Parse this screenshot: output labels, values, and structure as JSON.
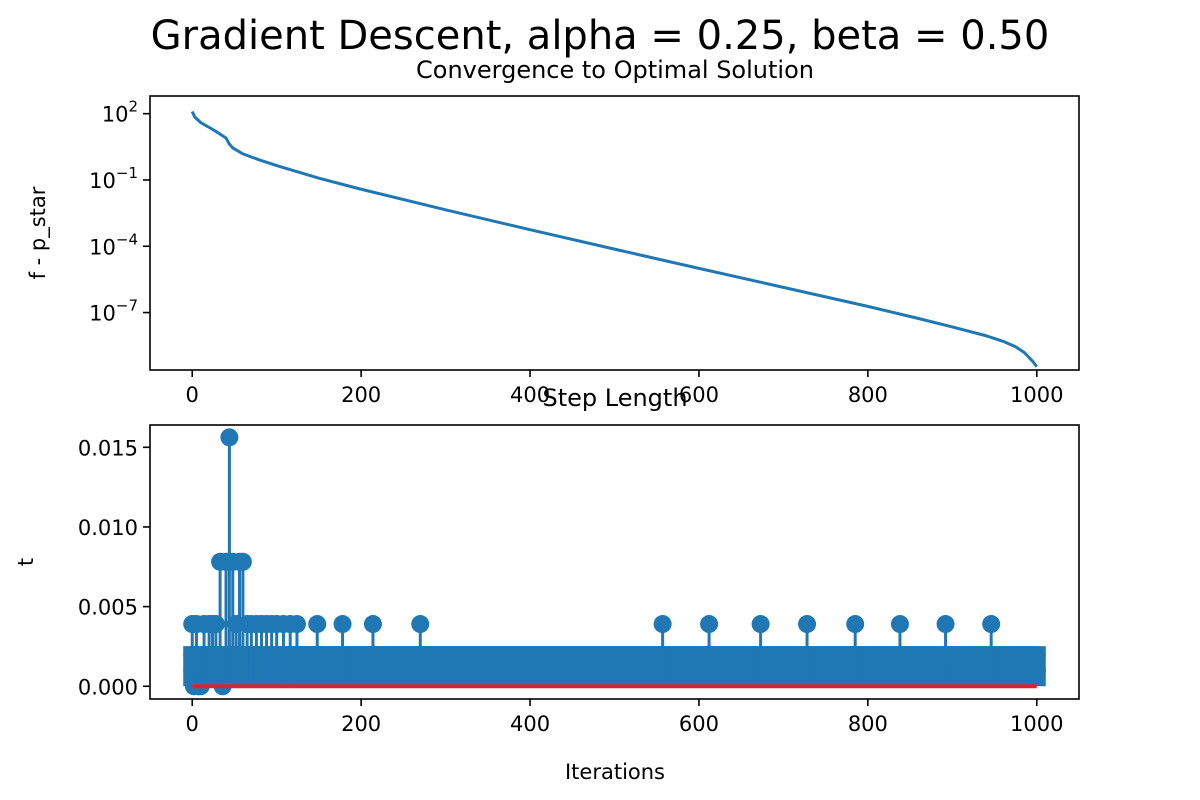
{
  "figure": {
    "suptitle": "Gradient Descent, alpha = 0.25, beta = 0.50"
  },
  "colors": {
    "series": "#1f77b4",
    "baseline": "#d62728",
    "axes": "#000000"
  },
  "chart_data": [
    {
      "type": "line",
      "title": "Convergence to Optimal Solution",
      "xlabel": "",
      "ylabel": "f - p_star",
      "xlim": [
        -50,
        1050
      ],
      "ylim_log10": [
        -9.6,
        2.8
      ],
      "yscale": "log",
      "grid": false,
      "x_ticks": [
        0,
        200,
        400,
        600,
        800,
        1000
      ],
      "y_ticks": [
        {
          "base": "10",
          "exp": "2",
          "value": 100
        },
        {
          "base": "10",
          "exp": "−1",
          "value": 0.1
        },
        {
          "base": "10",
          "exp": "−4",
          "value": 0.0001
        },
        {
          "base": "10",
          "exp": "−7",
          "value": 1e-07
        }
      ],
      "series": [
        {
          "x": [
            0,
            3,
            10,
            20,
            30,
            40,
            44,
            48,
            60,
            80,
            100,
            150,
            200,
            300,
            400,
            500,
            600,
            700,
            800,
            860,
            900,
            940,
            960,
            975,
            985,
            990,
            995,
            998,
            1000
          ],
          "y_log10": [
            2.1,
            1.85,
            1.6,
            1.38,
            1.15,
            0.9,
            0.62,
            0.45,
            0.18,
            -0.1,
            -0.35,
            -0.92,
            -1.42,
            -2.35,
            -3.25,
            -4.13,
            -5.0,
            -5.86,
            -6.72,
            -7.27,
            -7.65,
            -8.05,
            -8.3,
            -8.55,
            -8.8,
            -9.0,
            -9.2,
            -9.35,
            -9.45
          ]
        }
      ]
    },
    {
      "type": "stem",
      "title": "Step Length",
      "xlabel": "Iterations",
      "ylabel": "t",
      "xlim": [
        -50,
        1050
      ],
      "ylim": [
        -0.0008,
        0.0164
      ],
      "grid": false,
      "x_ticks": [
        0,
        200,
        400,
        600,
        800,
        1000
      ],
      "y_ticks": [
        "0.000",
        "0.005",
        "0.010",
        "0.015"
      ],
      "y_tick_values": [
        0,
        0.005,
        0.01,
        0.015
      ],
      "base_value": 0.001953125,
      "band_values": [
        0.001953125,
        0.0009765625
      ],
      "band_x_range": [
        0,
        1000
      ],
      "stems": [
        {
          "x": 0,
          "y": 0.00390625
        },
        {
          "x": 2,
          "y": 0.0
        },
        {
          "x": 3,
          "y": 0.001953125
        },
        {
          "x": 5,
          "y": 0.00390625
        },
        {
          "x": 7,
          "y": 0.0
        },
        {
          "x": 10,
          "y": 0.0
        },
        {
          "x": 14,
          "y": 0.00390625
        },
        {
          "x": 20,
          "y": 0.00390625
        },
        {
          "x": 24,
          "y": 0.00390625
        },
        {
          "x": 28,
          "y": 0.00390625
        },
        {
          "x": 33,
          "y": 0.0078125
        },
        {
          "x": 36,
          "y": 0.0
        },
        {
          "x": 40,
          "y": 0.0078125
        },
        {
          "x": 44,
          "y": 0.015625
        },
        {
          "x": 48,
          "y": 0.0078125
        },
        {
          "x": 52,
          "y": 0.00390625
        },
        {
          "x": 56,
          "y": 0.0078125
        },
        {
          "x": 60,
          "y": 0.0078125
        },
        {
          "x": 65,
          "y": 0.00390625
        },
        {
          "x": 70,
          "y": 0.00390625
        },
        {
          "x": 76,
          "y": 0.00390625
        },
        {
          "x": 82,
          "y": 0.00390625
        },
        {
          "x": 88,
          "y": 0.00390625
        },
        {
          "x": 94,
          "y": 0.00390625
        },
        {
          "x": 100,
          "y": 0.00390625
        },
        {
          "x": 108,
          "y": 0.00390625
        },
        {
          "x": 116,
          "y": 0.00390625
        },
        {
          "x": 124,
          "y": 0.00390625
        },
        {
          "x": 148,
          "y": 0.00390625
        },
        {
          "x": 178,
          "y": 0.00390625
        },
        {
          "x": 214,
          "y": 0.00390625
        },
        {
          "x": 270,
          "y": 0.00390625
        },
        {
          "x": 557,
          "y": 0.00390625
        },
        {
          "x": 612,
          "y": 0.00390625
        },
        {
          "x": 673,
          "y": 0.00390625
        },
        {
          "x": 728,
          "y": 0.00390625
        },
        {
          "x": 785,
          "y": 0.00390625
        },
        {
          "x": 838,
          "y": 0.00390625
        },
        {
          "x": 892,
          "y": 0.00390625
        },
        {
          "x": 946,
          "y": 0.00390625
        },
        {
          "x": 1000,
          "y": 0.0009765625
        }
      ]
    }
  ]
}
